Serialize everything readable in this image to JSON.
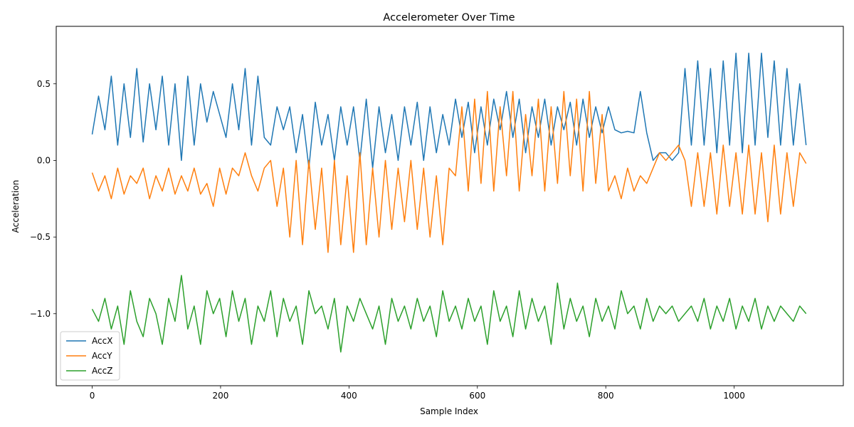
{
  "chart_data": {
    "type": "line",
    "title": "Accelerometer Over Time",
    "xlabel": "Sample Index",
    "ylabel": "Acceleration",
    "xlim": [
      -56,
      1170
    ],
    "ylim": [
      -1.47,
      0.875
    ],
    "x_ticks": [
      0,
      200,
      400,
      600,
      800,
      1000
    ],
    "x_tick_labels": [
      "0",
      "200",
      "400",
      "600",
      "800",
      "1000"
    ],
    "y_ticks": [
      0.5,
      0.0,
      -0.5,
      -1.0
    ],
    "y_tick_labels": [
      "0.5",
      "0.0",
      "−0.5",
      "−1.0"
    ],
    "grid": false,
    "legend_position": "lower-left",
    "x_start": 0,
    "x_step": 16,
    "series": [
      {
        "name": "AccX",
        "color": "#1f77b4",
        "values": [
          0.17,
          0.42,
          0.2,
          0.55,
          0.1,
          0.5,
          0.15,
          0.6,
          0.12,
          0.5,
          0.2,
          0.55,
          0.1,
          0.5,
          0.0,
          0.55,
          0.1,
          0.5,
          0.25,
          0.45,
          0.3,
          0.15,
          0.5,
          0.2,
          0.6,
          0.1,
          0.55,
          0.15,
          0.1,
          0.35,
          0.2,
          0.35,
          0.05,
          0.3,
          -0.05,
          0.38,
          0.1,
          0.3,
          0.0,
          0.35,
          0.1,
          0.35,
          0.0,
          0.4,
          -0.05,
          0.35,
          0.05,
          0.3,
          0.0,
          0.35,
          0.1,
          0.38,
          0.0,
          0.35,
          0.05,
          0.3,
          0.1,
          0.4,
          0.15,
          0.38,
          0.05,
          0.35,
          0.1,
          0.4,
          0.2,
          0.45,
          0.15,
          0.4,
          0.05,
          0.35,
          0.15,
          0.4,
          0.1,
          0.35,
          0.2,
          0.38,
          0.1,
          0.4,
          0.15,
          0.35,
          0.18,
          0.35,
          0.2,
          0.18,
          0.19,
          0.18,
          0.45,
          0.18,
          0.0,
          0.05,
          0.05,
          0.0,
          0.05,
          0.6,
          0.1,
          0.65,
          0.1,
          0.6,
          0.05,
          0.65,
          0.1,
          0.7,
          0.05,
          0.7,
          0.1,
          0.7,
          0.15,
          0.65,
          0.1,
          0.6,
          0.1,
          0.5,
          0.1
        ],
        "period_note": ""
      },
      {
        "name": "AccY",
        "color": "#ff7f0e",
        "values": [
          -0.08,
          -0.2,
          -0.1,
          -0.25,
          -0.05,
          -0.22,
          -0.1,
          -0.15,
          -0.05,
          -0.25,
          -0.1,
          -0.2,
          -0.05,
          -0.22,
          -0.1,
          -0.2,
          -0.05,
          -0.22,
          -0.15,
          -0.3,
          -0.05,
          -0.22,
          -0.05,
          -0.1,
          0.05,
          -0.1,
          -0.2,
          -0.05,
          0.0,
          -0.3,
          -0.05,
          -0.5,
          0.0,
          -0.55,
          0.0,
          -0.45,
          -0.05,
          -0.6,
          0.0,
          -0.55,
          -0.1,
          -0.6,
          0.05,
          -0.55,
          -0.05,
          -0.5,
          0.0,
          -0.45,
          -0.05,
          -0.4,
          0.0,
          -0.45,
          -0.05,
          -0.5,
          -0.1,
          -0.55,
          -0.05,
          -0.1,
          0.35,
          -0.2,
          0.4,
          -0.15,
          0.45,
          -0.2,
          0.35,
          -0.1,
          0.45,
          -0.2,
          0.3,
          -0.1,
          0.4,
          -0.2,
          0.35,
          -0.15,
          0.45,
          -0.1,
          0.4,
          -0.2,
          0.45,
          -0.15,
          0.3,
          -0.2,
          -0.1,
          -0.25,
          -0.05,
          -0.2,
          -0.1,
          -0.15,
          -0.05,
          0.05,
          0.0,
          0.05,
          0.1,
          0.0,
          -0.3,
          0.05,
          -0.3,
          0.05,
          -0.35,
          0.1,
          -0.3,
          0.05,
          -0.35,
          0.1,
          -0.35,
          0.05,
          -0.4,
          0.1,
          -0.35,
          0.05,
          -0.3,
          0.05,
          -0.02
        ]
      },
      {
        "name": "AccZ",
        "color": "#2ca02c",
        "values": [
          -0.97,
          -1.05,
          -0.9,
          -1.1,
          -0.95,
          -1.2,
          -0.85,
          -1.05,
          -1.15,
          -0.9,
          -1.0,
          -1.2,
          -0.9,
          -1.05,
          -0.75,
          -1.1,
          -0.95,
          -1.2,
          -0.85,
          -1.0,
          -0.9,
          -1.15,
          -0.85,
          -1.05,
          -0.9,
          -1.2,
          -0.95,
          -1.05,
          -0.85,
          -1.15,
          -0.9,
          -1.05,
          -0.95,
          -1.2,
          -0.85,
          -1.0,
          -0.95,
          -1.1,
          -0.9,
          -1.25,
          -0.95,
          -1.05,
          -0.9,
          -1.0,
          -1.1,
          -0.95,
          -1.2,
          -0.9,
          -1.05,
          -0.95,
          -1.1,
          -0.9,
          -1.05,
          -0.95,
          -1.15,
          -0.85,
          -1.05,
          -0.95,
          -1.1,
          -0.9,
          -1.05,
          -0.95,
          -1.2,
          -0.85,
          -1.05,
          -0.95,
          -1.15,
          -0.85,
          -1.1,
          -0.9,
          -1.05,
          -0.95,
          -1.2,
          -0.8,
          -1.1,
          -0.9,
          -1.05,
          -0.95,
          -1.15,
          -0.9,
          -1.05,
          -0.95,
          -1.1,
          -0.85,
          -1.0,
          -0.95,
          -1.1,
          -0.9,
          -1.05,
          -0.95,
          -1.0,
          -0.95,
          -1.05,
          -1.0,
          -0.95,
          -1.05,
          -0.9,
          -1.1,
          -0.95,
          -1.05,
          -0.9,
          -1.1,
          -0.95,
          -1.05,
          -0.9,
          -1.1,
          -0.95,
          -1.05,
          -0.95,
          -1.0,
          -1.05,
          -0.95,
          -1.0
        ]
      }
    ]
  }
}
